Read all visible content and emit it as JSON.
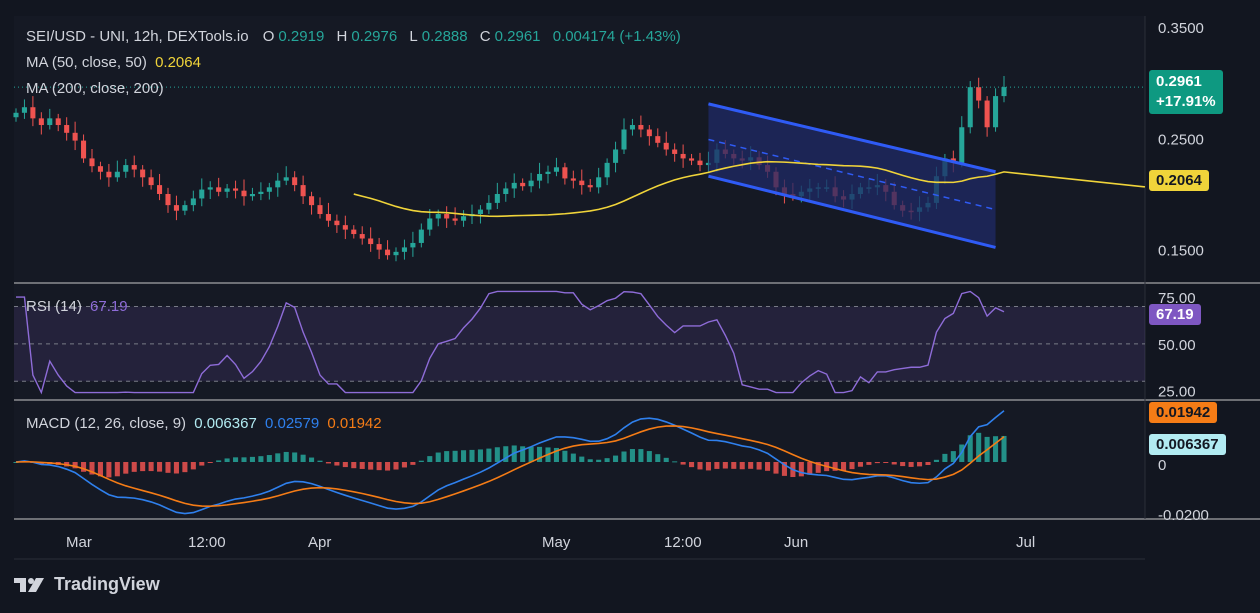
{
  "header": {
    "symbol_line": "SEI/USD - UNI, 12h, DEXTools.io",
    "open_label": "O",
    "open_value": "0.2919",
    "high_label": "H",
    "high_value": "0.2976",
    "low_label": "L",
    "low_value": "0.2888",
    "close_label": "C",
    "close_value": "0.2961",
    "change": "0.004174 (+1.43%)"
  },
  "ma50": {
    "label": "MA (50, close, 50)",
    "value": "0.2064"
  },
  "ma200": {
    "label": "MA (200, close, 200)"
  },
  "rsi": {
    "label": "RSI (14)",
    "value": "67.19"
  },
  "macd": {
    "label": "MACD (12, 26, close, 9)",
    "hist": "0.006367",
    "macd": "0.02579",
    "signal": "0.01942"
  },
  "price_badge": {
    "price": "0.2961",
    "change": "+17.91%"
  },
  "ma_badge": "0.2064",
  "rsi_badge": "67.19",
  "macd_badges": {
    "signal": "0.01942",
    "hist": "0.006367"
  },
  "brand": "TradingView",
  "colors": {
    "bg": "#121620",
    "up": "#26a69a",
    "down": "#ef5350",
    "ma": "#f0d43a",
    "rsi": "#8e6cd8",
    "macd": "#2f80ed",
    "signal": "#f57c16",
    "channel": "#2f5bf5",
    "channel_fill": "#1f2a66"
  },
  "chart_data": [
    {
      "type": "candlestick",
      "title": "SEI/USD - UNI, 12h, DEXTools.io",
      "ylim": [
        0.12,
        0.36
      ],
      "yticks": [
        "0.3500",
        "0.2500",
        "0.1500"
      ],
      "x_tick_labels": [
        "Mar",
        "12:00",
        "Apr",
        "May",
        "12:00",
        "Jun",
        "Jul"
      ],
      "series_close": [
        0.273,
        0.278,
        0.268,
        0.262,
        0.268,
        0.262,
        0.255,
        0.248,
        0.232,
        0.225,
        0.22,
        0.215,
        0.22,
        0.226,
        0.222,
        0.215,
        0.208,
        0.2,
        0.19,
        0.185,
        0.19,
        0.196,
        0.204,
        0.206,
        0.202,
        0.205,
        0.203,
        0.198,
        0.2,
        0.202,
        0.206,
        0.212,
        0.215,
        0.208,
        0.198,
        0.19,
        0.182,
        0.176,
        0.172,
        0.168,
        0.164,
        0.16,
        0.155,
        0.15,
        0.145,
        0.148,
        0.152,
        0.156,
        0.168,
        0.178,
        0.182,
        0.178,
        0.176,
        0.18,
        0.182,
        0.186,
        0.192,
        0.2,
        0.205,
        0.21,
        0.207,
        0.212,
        0.218,
        0.22,
        0.224,
        0.214,
        0.212,
        0.208,
        0.206,
        0.215,
        0.228,
        0.24,
        0.258,
        0.262,
        0.258,
        0.252,
        0.246,
        0.24,
        0.236,
        0.232,
        0.23,
        0.226,
        0.228,
        0.24,
        0.236,
        0.232,
        0.23,
        0.233,
        0.226,
        0.22,
        0.206,
        0.2,
        0.198,
        0.202,
        0.205,
        0.206,
        0.206,
        0.198,
        0.195,
        0.2,
        0.206,
        0.206,
        0.208,
        0.202,
        0.19,
        0.185,
        0.184,
        0.188,
        0.192,
        0.216,
        0.232,
        0.228,
        0.26,
        0.296,
        0.284,
        0.26,
        0.288,
        0.2961
      ],
      "ma50": {
        "label": "MA (50, close, 50)",
        "last": 0.2064
      },
      "ma200": {
        "label": "MA (200, close, 200)"
      },
      "channel": {
        "upper": [
          0.281,
          0.22
        ],
        "lower": [
          0.216,
          0.152
        ],
        "mid": [
          0.249,
          0.186
        ]
      }
    },
    {
      "type": "line",
      "title": "RSI (14)",
      "ylim": [
        20,
        82
      ],
      "yticks": [
        "75.00",
        "50.00",
        "25.00"
      ],
      "bands": [
        30,
        70
      ],
      "last": 67.19
    },
    {
      "type": "bar+line",
      "title": "MACD (12, 26, close, 9)",
      "yticks": [
        "0",
        "-0.0200"
      ],
      "last_hist": 0.006367,
      "last_macd": 0.02579,
      "last_signal": 0.01942
    }
  ]
}
